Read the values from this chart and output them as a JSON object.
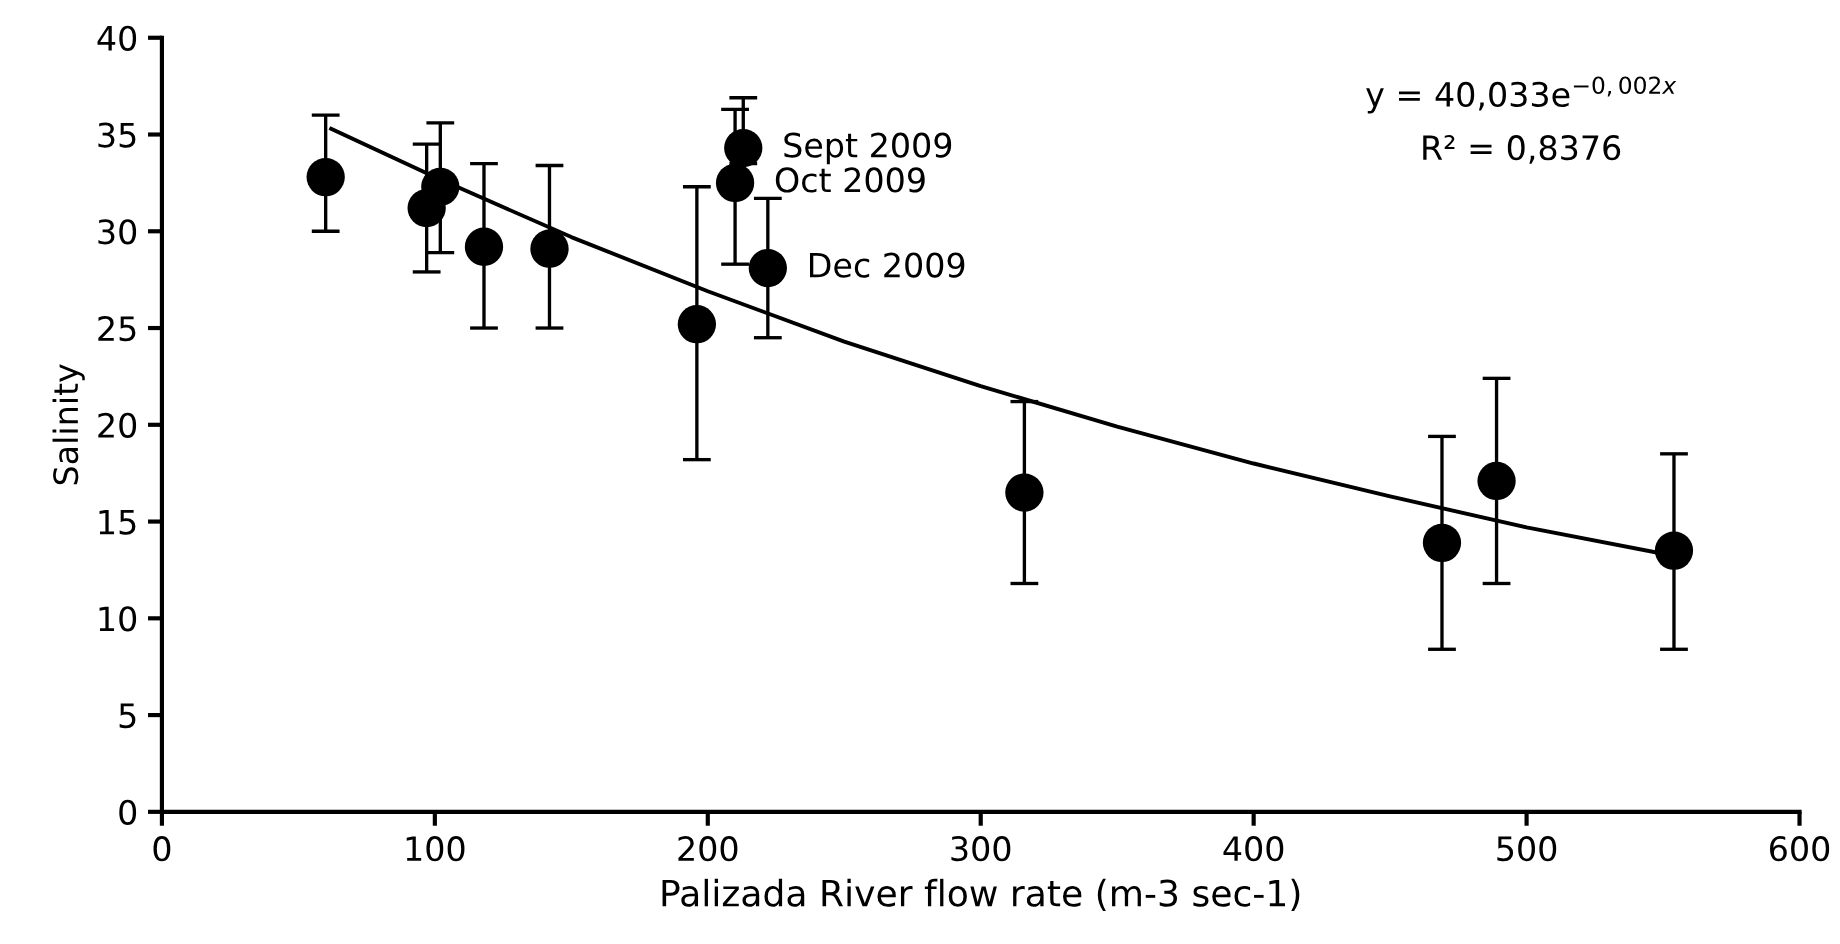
{
  "chart_data": {
    "type": "scatter",
    "xlabel": "Palizada River flow rate (m-3 sec-1)",
    "ylabel": "Salinity",
    "xlim": [
      0,
      600
    ],
    "xticks": [
      0,
      100,
      200,
      300,
      400,
      500,
      600
    ],
    "ylim": [
      0,
      40
    ],
    "yticks": [
      0,
      5,
      10,
      15,
      20,
      25,
      30,
      35,
      40
    ],
    "grid": false,
    "legend": false,
    "marker": "circle",
    "series": [
      {
        "color": "#000000",
        "x": [
          60,
          97,
          102,
          118,
          142,
          196,
          210,
          213,
          222,
          316,
          469,
          489,
          554
        ],
        "values": [
          32.8,
          31.2,
          32.3,
          29.2,
          29.1,
          25.2,
          32.5,
          34.3,
          28.1,
          16.5,
          13.9,
          17.1,
          13.5
        ],
        "errors": [
          [
            30,
            36
          ],
          [
            27.9,
            34.5
          ],
          [
            28.9,
            35.6
          ],
          [
            25,
            33.5
          ],
          [
            25,
            33.4
          ],
          [
            18.2,
            32.3
          ],
          [
            28.3,
            36.3
          ],
          [
            33.5,
            36.9
          ],
          [
            24.5,
            31.7
          ],
          [
            11.8,
            21.2
          ],
          [
            8.4,
            19.4
          ],
          [
            11.8,
            22.4
          ],
          [
            8.4,
            18.5
          ]
        ]
      },
      {
        "type": "line",
        "color": "#000000",
        "line_style": "solid",
        "marker": "none",
        "x": [
          62,
          100,
          150,
          200,
          250,
          300,
          350,
          400,
          450,
          500,
          555
        ],
        "values": [
          35.3,
          32.8,
          29.7,
          26.9,
          24.3,
          22.0,
          19.9,
          18.0,
          16.3,
          14.7,
          13.2
        ]
      }
    ],
    "annotations": [
      {
        "text": "Sept 2009",
        "x": 213,
        "y": 34.3
      },
      {
        "text": "Oct 2009",
        "x": 210,
        "y": 32.5
      },
      {
        "text": "Dec 2009",
        "x": 222,
        "y": 28.1
      },
      "y = 40,033e$^{−0,002x}$",
      "R² = 0,8376"
    ]
  }
}
